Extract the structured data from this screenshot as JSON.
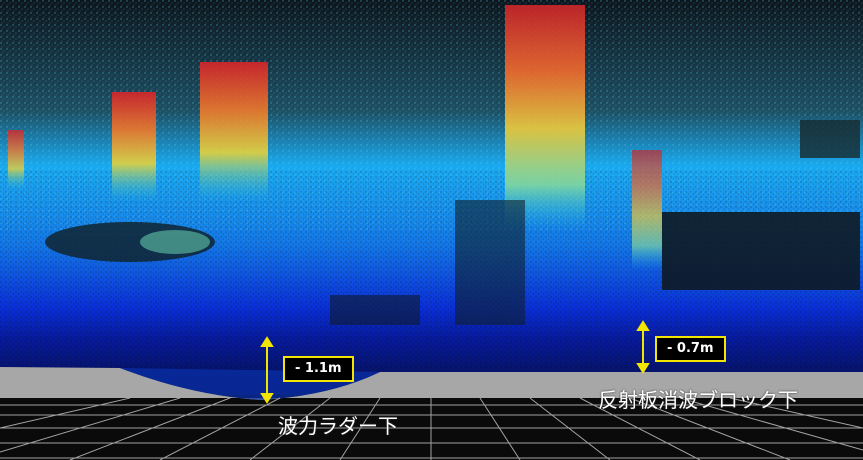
{
  "scene": {
    "annotations": {
      "left_depth": "- 1.1m",
      "right_depth": "- 0.7m"
    },
    "captions": {
      "left": "波力ラダー下",
      "right": "反射板消波ブロック下"
    },
    "colors": {
      "annotation_accent": "#f2e600",
      "point_cloud_deep": "#0a1fd0",
      "point_cloud_mid": "#19a9f0",
      "point_cloud_high": "#e0402a",
      "seabed_gray": "#a7a7a7",
      "background": "#0b1016"
    }
  }
}
